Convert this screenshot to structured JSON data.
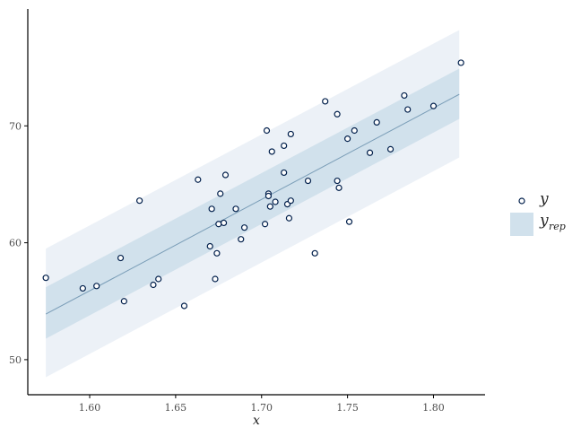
{
  "chart_data": {
    "type": "scatter",
    "title": "",
    "xlabel": "x",
    "ylabel": "",
    "xlim": [
      1.564,
      1.83
    ],
    "ylim": [
      47,
      80
    ],
    "x_ticks": [
      "1.60",
      "1.65",
      "1.70",
      "1.75",
      "1.80"
    ],
    "y_ticks": [
      "50",
      "60",
      "70"
    ],
    "grid": false,
    "legend_position": "right",
    "legend": [
      {
        "symbol": "y",
        "subscript": "",
        "kind": "open-point"
      },
      {
        "symbol": "y",
        "subscript": "rep",
        "kind": "band"
      }
    ],
    "colors": {
      "outer_band": "#ecf1f7",
      "inner_band": "#d1e1ec",
      "median_line": "#7a9db7",
      "point_stroke": "#011f4b",
      "axis": "#000000"
    },
    "band": {
      "x": [
        1.5745,
        1.815
      ],
      "median": [
        53.9,
        72.7
      ],
      "inner_lower": [
        51.8,
        70.6
      ],
      "inner_upper": [
        56.2,
        74.9
      ],
      "outer_lower": [
        48.5,
        67.3
      ],
      "outer_upper": [
        59.5,
        78.2
      ]
    },
    "points": [
      [
        1.5745,
        57.0
      ],
      [
        1.596,
        56.1
      ],
      [
        1.604,
        56.3
      ],
      [
        1.618,
        58.7
      ],
      [
        1.62,
        55.0
      ],
      [
        1.629,
        63.6
      ],
      [
        1.637,
        56.4
      ],
      [
        1.64,
        56.9
      ],
      [
        1.655,
        54.6
      ],
      [
        1.663,
        65.4
      ],
      [
        1.67,
        59.7
      ],
      [
        1.671,
        62.9
      ],
      [
        1.673,
        56.9
      ],
      [
        1.674,
        59.1
      ],
      [
        1.675,
        61.6
      ],
      [
        1.676,
        64.2
      ],
      [
        1.678,
        61.7
      ],
      [
        1.679,
        65.8
      ],
      [
        1.685,
        62.9
      ],
      [
        1.688,
        60.3
      ],
      [
        1.69,
        61.3
      ],
      [
        1.702,
        61.6
      ],
      [
        1.703,
        69.6
      ],
      [
        1.704,
        64.2
      ],
      [
        1.704,
        64.0
      ],
      [
        1.705,
        63.1
      ],
      [
        1.706,
        67.8
      ],
      [
        1.708,
        63.5
      ],
      [
        1.713,
        68.3
      ],
      [
        1.713,
        66.0
      ],
      [
        1.715,
        63.3
      ],
      [
        1.716,
        62.1
      ],
      [
        1.717,
        69.3
      ],
      [
        1.717,
        63.6
      ],
      [
        1.727,
        65.3
      ],
      [
        1.731,
        59.1
      ],
      [
        1.737,
        72.1
      ],
      [
        1.744,
        71.0
      ],
      [
        1.744,
        65.3
      ],
      [
        1.745,
        64.7
      ],
      [
        1.75,
        68.9
      ],
      [
        1.751,
        61.8
      ],
      [
        1.754,
        69.6
      ],
      [
        1.763,
        67.7
      ],
      [
        1.767,
        70.3
      ],
      [
        1.775,
        68.0
      ],
      [
        1.783,
        72.6
      ],
      [
        1.785,
        71.4
      ],
      [
        1.8,
        71.7
      ],
      [
        1.816,
        75.4
      ]
    ]
  }
}
